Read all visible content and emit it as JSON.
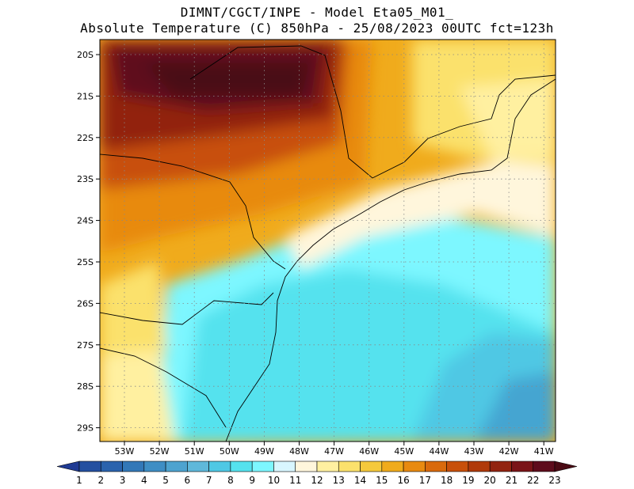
{
  "title_line1": "DIMNT/CGCT/INPE -  Model Eta05_M01_",
  "title_line2": "Absolute Temperature (C) 850hPa -  25/08/2023 00UTC fct=123h",
  "lat_labels": [
    "20S",
    "21S",
    "22S",
    "23S",
    "24S",
    "25S",
    "26S",
    "27S",
    "28S",
    "29S"
  ],
  "lon_labels": [
    "53W",
    "52W",
    "51W",
    "50W",
    "49W",
    "48W",
    "47W",
    "46W",
    "45W",
    "44W",
    "43W",
    "42W",
    "41W"
  ],
  "colorbar": {
    "labels": [
      "1",
      "2",
      "3",
      "4",
      "5",
      "6",
      "7",
      "8",
      "9",
      "10",
      "11",
      "12",
      "13",
      "14",
      "15",
      "16",
      "17",
      "18",
      "19",
      "20",
      "21",
      "22",
      "23"
    ],
    "colors": [
      "#1f3a93",
      "#2450a0",
      "#2b63ad",
      "#3378b8",
      "#3f8ec4",
      "#4ea3cf",
      "#5fb8da",
      "#4fc8e4",
      "#55e2ee",
      "#7df7ff",
      "#d8f6ff",
      "#fff6dc",
      "#fff0a0",
      "#fbe16c",
      "#f5c93c",
      "#f0ab1c",
      "#e88a10",
      "#d96a0c",
      "#c8500a",
      "#b03a0a",
      "#922410",
      "#7a1418",
      "#5e0c1c",
      "#4a0a14"
    ]
  },
  "chart_data": {
    "type": "heatmap",
    "variable": "Absolute Temperature (C) 850hPa",
    "lat_range": [
      "29.5S",
      "19.8S"
    ],
    "lon_range": [
      "53.5W",
      "40.6W"
    ],
    "value_range": [
      1,
      23
    ],
    "regions": [
      {
        "area": "north-west interior (20S-21S, 53W-49W)",
        "value": 22
      },
      {
        "area": "west (22S-24S, 53W-50W)",
        "value": 18
      },
      {
        "area": "central north (20S-23S, 48W-47W)",
        "value": 17
      },
      {
        "area": "north-east (20S-22S, 45W-41W)",
        "value": 14
      },
      {
        "area": "coast near 24S-25S",
        "value": 11
      },
      {
        "area": "south-west (27S-29S, 53W-52W)",
        "value": 13
      },
      {
        "area": "southern ocean (26S-29S, 48W-45W)",
        "value": 9
      },
      {
        "area": "south-east ocean (28S-29S, 43W-41W)",
        "value": 7
      }
    ]
  }
}
